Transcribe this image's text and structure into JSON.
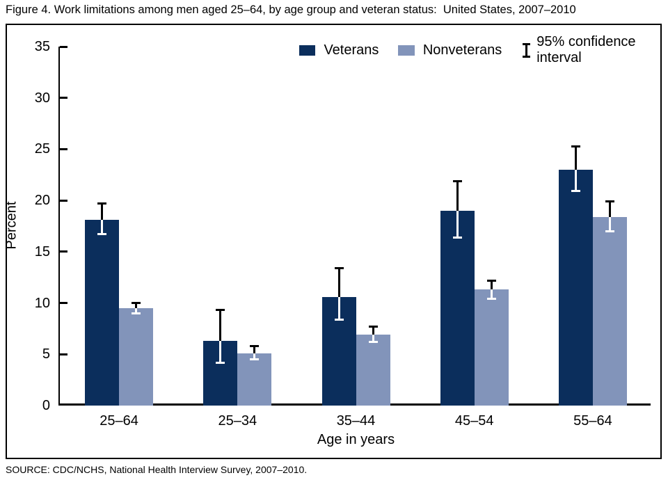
{
  "page": {
    "title": "Figure 4. Work limitations among men aged 25–64, by age group and veteran status:  United States, 2007–2010",
    "source": "SOURCE: CDC/NCHS, National Health Interview Survey, 2007–2010."
  },
  "legend": {
    "veterans_label": "Veterans",
    "nonveterans_label": "Nonveterans",
    "ci_label": "95% confidence interval"
  },
  "colors": {
    "veterans": "#0b2e5c",
    "nonveterans": "#8294ba",
    "axis": "#000000",
    "ci_above_bar": "#000000",
    "ci_within_bar": "#ffffff",
    "background": "#ffffff"
  },
  "chart_data": {
    "type": "bar",
    "title": "Figure 4. Work limitations among men aged 25–64, by age group and veteran status: United States, 2007–2010",
    "xlabel": "Age in years",
    "ylabel": "Percent",
    "ylim": [
      0,
      35
    ],
    "yticks": [
      0,
      5,
      10,
      15,
      20,
      25,
      30,
      35
    ],
    "grid": false,
    "legend_position": "top",
    "error_bar_note": "95% confidence interval",
    "categories": [
      "25–64",
      "25–34",
      "35–44",
      "45–54",
      "55–64"
    ],
    "series": [
      {
        "name": "Veterans",
        "color": "#0b2e5c",
        "values": [
          18.1,
          6.3,
          10.6,
          19.0,
          23.0
        ],
        "ci_low": [
          16.7,
          4.2,
          8.4,
          16.4,
          20.9
        ],
        "ci_high": [
          19.7,
          9.3,
          13.4,
          21.9,
          25.3
        ]
      },
      {
        "name": "Nonveterans",
        "color": "#8294ba",
        "values": [
          9.5,
          5.1,
          6.9,
          11.3,
          18.4
        ],
        "ci_low": [
          9.0,
          4.5,
          6.2,
          10.4,
          17.0
        ],
        "ci_high": [
          10.0,
          5.8,
          7.7,
          12.2,
          19.9
        ]
      }
    ]
  }
}
